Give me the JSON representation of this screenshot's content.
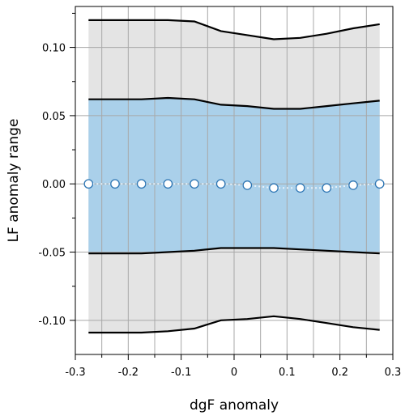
{
  "chart_data": {
    "type": "area",
    "xlabel": "dgF anomaly",
    "ylabel": "LF anomaly range",
    "xlim": [
      -0.3,
      0.3
    ],
    "ylim": [
      -0.125,
      0.13
    ],
    "grid": true,
    "x_ticks": [
      -0.3,
      -0.2,
      -0.1,
      0,
      0.1,
      0.2,
      0.3
    ],
    "x_tick_labels": [
      "-0.3",
      "-0.2",
      "-0.1",
      "0",
      "0.1",
      "0.2",
      "0.3"
    ],
    "y_ticks": [
      -0.1,
      -0.05,
      0,
      0.05,
      0.1
    ],
    "y_tick_labels": [
      "-0.10",
      "-0.05",
      "0.00",
      "0.05",
      "0.10"
    ],
    "x": [
      -0.275,
      -0.225,
      -0.175,
      -0.125,
      -0.075,
      -0.025,
      0.025,
      0.075,
      0.125,
      0.175,
      0.225,
      0.275
    ],
    "series": [
      {
        "role": "outer-upper",
        "values": [
          0.12,
          0.12,
          0.12,
          0.12,
          0.119,
          0.112,
          0.109,
          0.106,
          0.107,
          0.11,
          0.114,
          0.117
        ]
      },
      {
        "role": "inner-upper",
        "values": [
          0.062,
          0.062,
          0.062,
          0.063,
          0.062,
          0.058,
          0.057,
          0.055,
          0.055,
          0.057,
          0.059,
          0.061
        ]
      },
      {
        "role": "center",
        "values": [
          0.0,
          0.0,
          0.0,
          0.0,
          0.0,
          0.0,
          -0.001,
          -0.003,
          -0.003,
          -0.003,
          -0.001,
          0.0
        ]
      },
      {
        "role": "inner-lower",
        "values": [
          -0.051,
          -0.051,
          -0.051,
          -0.05,
          -0.049,
          -0.047,
          -0.047,
          -0.047,
          -0.048,
          -0.049,
          -0.05,
          -0.051
        ]
      },
      {
        "role": "outer-lower",
        "values": [
          -0.109,
          -0.109,
          -0.109,
          -0.108,
          -0.106,
          -0.1,
          -0.099,
          -0.097,
          -0.099,
          -0.102,
          -0.105,
          -0.107
        ]
      }
    ],
    "colors": {
      "outer_band": "#e4e4e4",
      "inner_band": "#aad0ea",
      "band_edge": "#000000",
      "grid": "#a8a8a8",
      "marker_fill": "#ffffff",
      "marker_edge": "#2e76b4",
      "center_line": "#e8f1f8"
    }
  }
}
